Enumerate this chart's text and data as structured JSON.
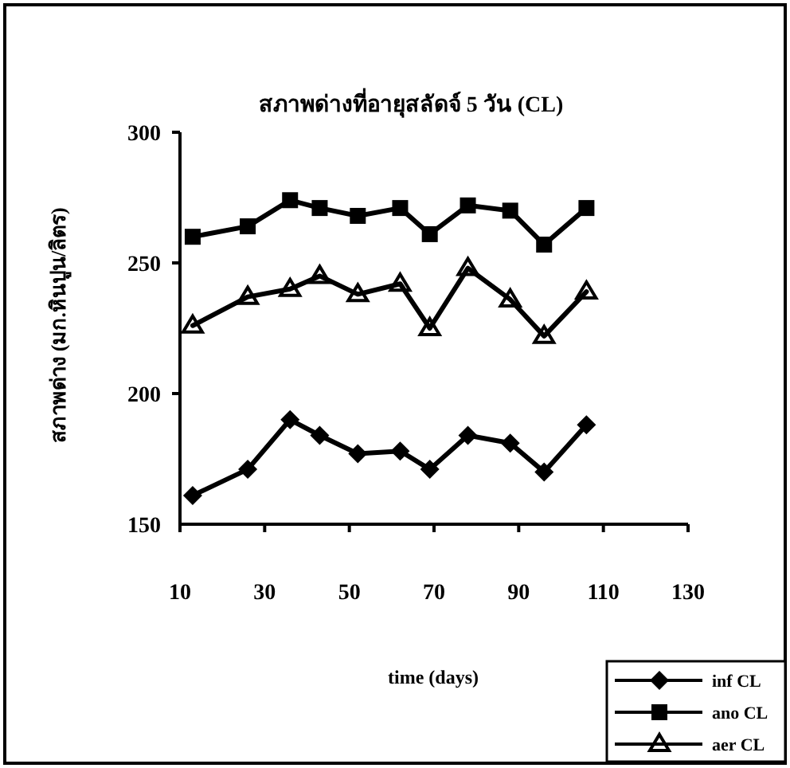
{
  "chart_data": {
    "type": "line",
    "title": "สภาพด่างที่อายุสลัดจ์ 5 วัน (CL)",
    "xlabel": "time (days)",
    "ylabel": "สภาพด่าง (มก.หินปูน/ลิตร)",
    "x": [
      13,
      26,
      36,
      43,
      52,
      62,
      69,
      78,
      88,
      96,
      106
    ],
    "series": [
      {
        "name": "inf CL",
        "color": "#000000",
        "marker": "diamond",
        "values": [
          161,
          171,
          190,
          184,
          177,
          178,
          171,
          184,
          181,
          170,
          188
        ]
      },
      {
        "name": "ano CL",
        "color": "#000000",
        "marker": "square",
        "values": [
          260,
          264,
          274,
          271,
          268,
          271,
          261,
          272,
          270,
          257,
          271
        ]
      },
      {
        "name": "aer CL",
        "color": "#000000",
        "marker": "triangle",
        "values": [
          226,
          237,
          240,
          245,
          238,
          242,
          225,
          248,
          236,
          222,
          239
        ]
      }
    ],
    "xlim": [
      10,
      130
    ],
    "xticks": [
      10,
      30,
      50,
      70,
      90,
      110,
      130
    ],
    "ylim": [
      150,
      300
    ],
    "yticks": [
      150,
      200,
      250,
      300
    ],
    "grid": false,
    "legend": "bottom right",
    "line_style": "solid"
  }
}
